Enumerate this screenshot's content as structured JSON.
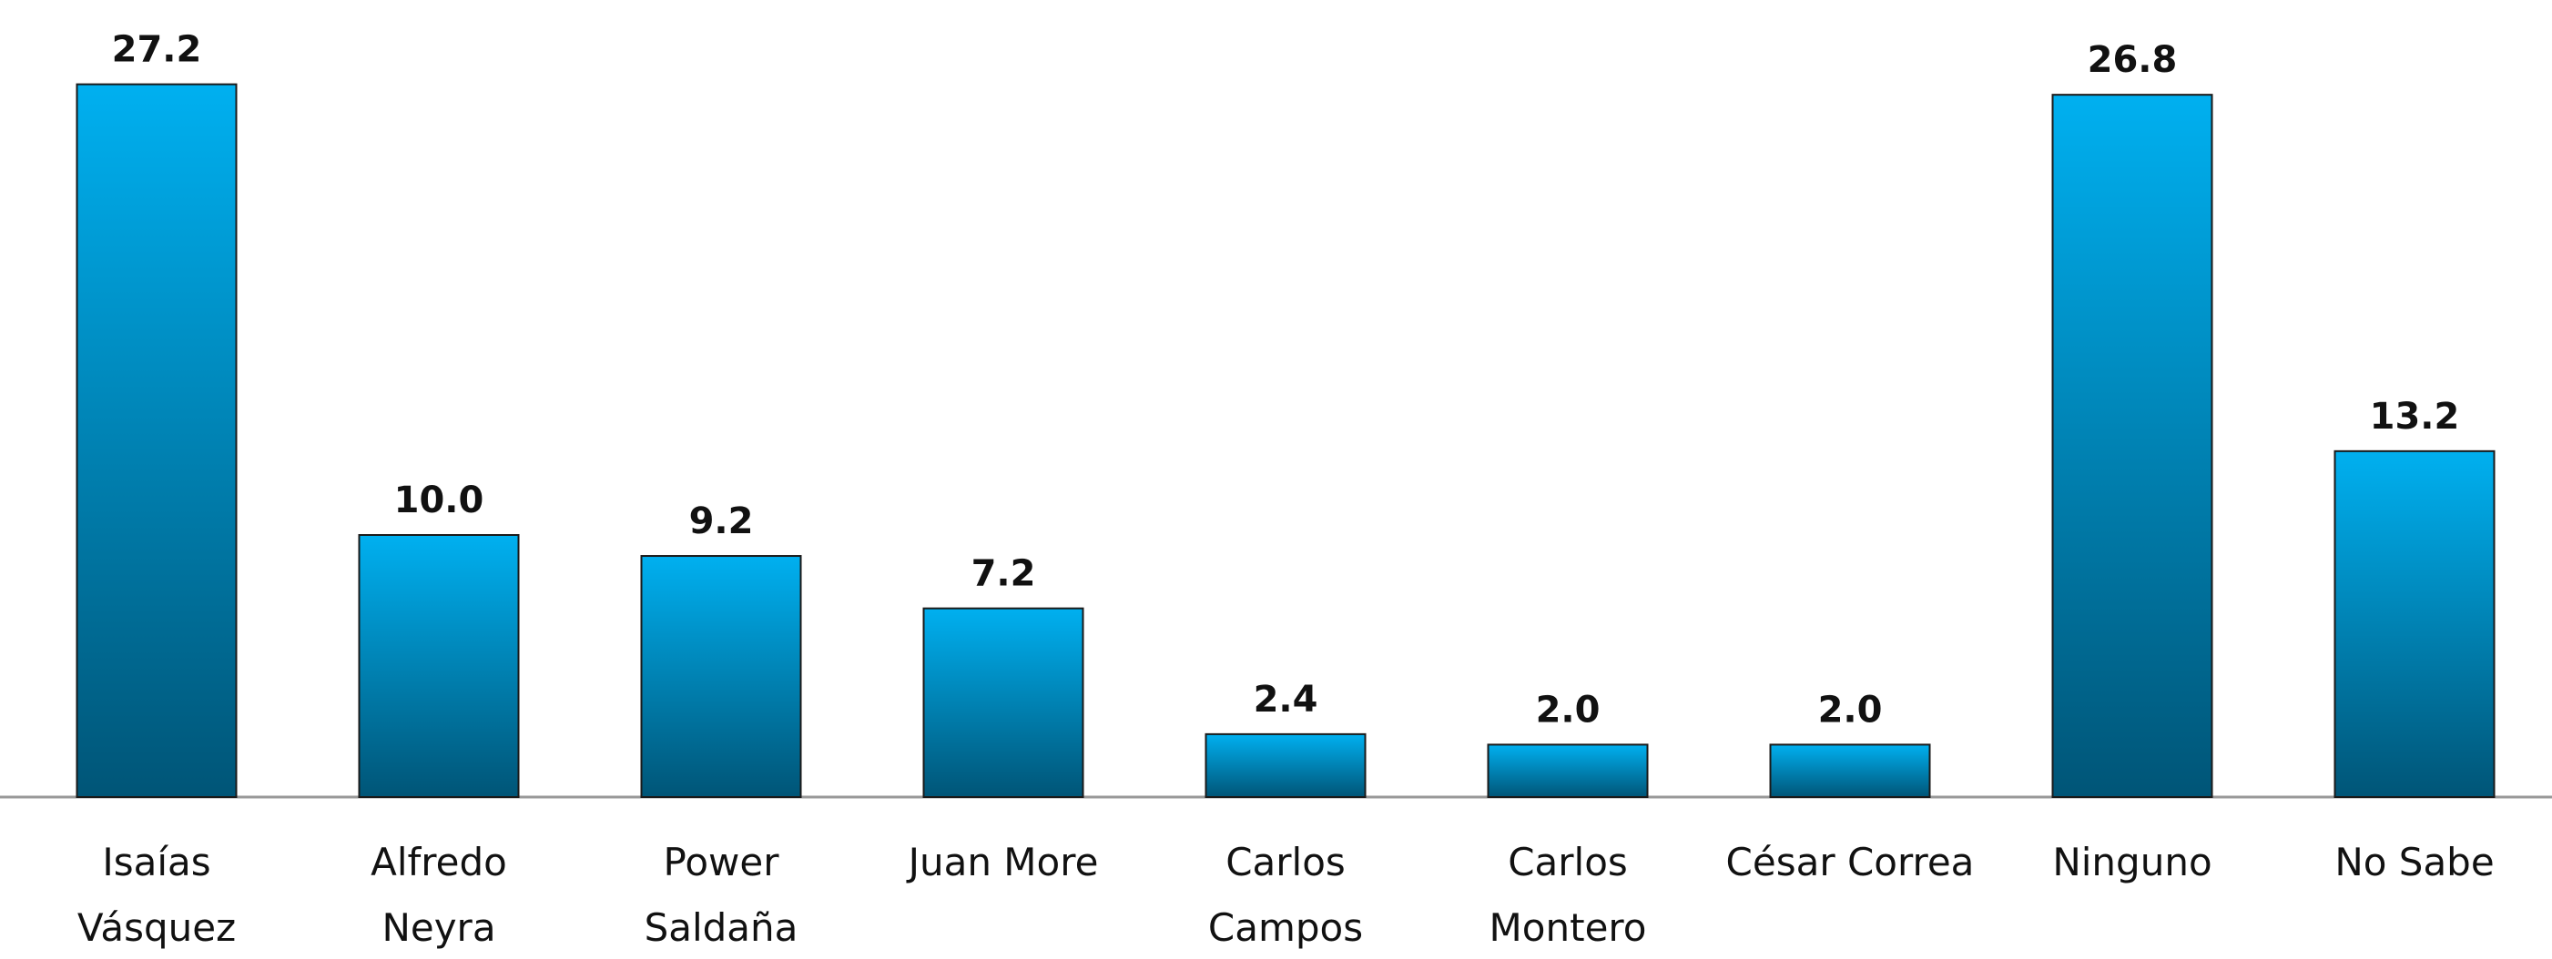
{
  "chart_data": {
    "type": "bar",
    "categories": [
      "Isaías\nVásquez",
      "Alfredo\nNeyra",
      "Power\nSaldaña",
      "Juan More",
      "Carlos\nCampos",
      "Carlos\nMontero",
      "César Correa",
      "Ninguno",
      "No Sabe"
    ],
    "values": [
      27.2,
      10.0,
      9.2,
      7.2,
      2.4,
      2.0,
      2.0,
      26.8,
      13.2
    ],
    "value_labels": [
      "27.2",
      "10.0",
      "9.2",
      "7.2",
      "2.4",
      "2.0",
      "2.0",
      "26.8",
      "13.2"
    ],
    "color": "#00b0f0"
  }
}
